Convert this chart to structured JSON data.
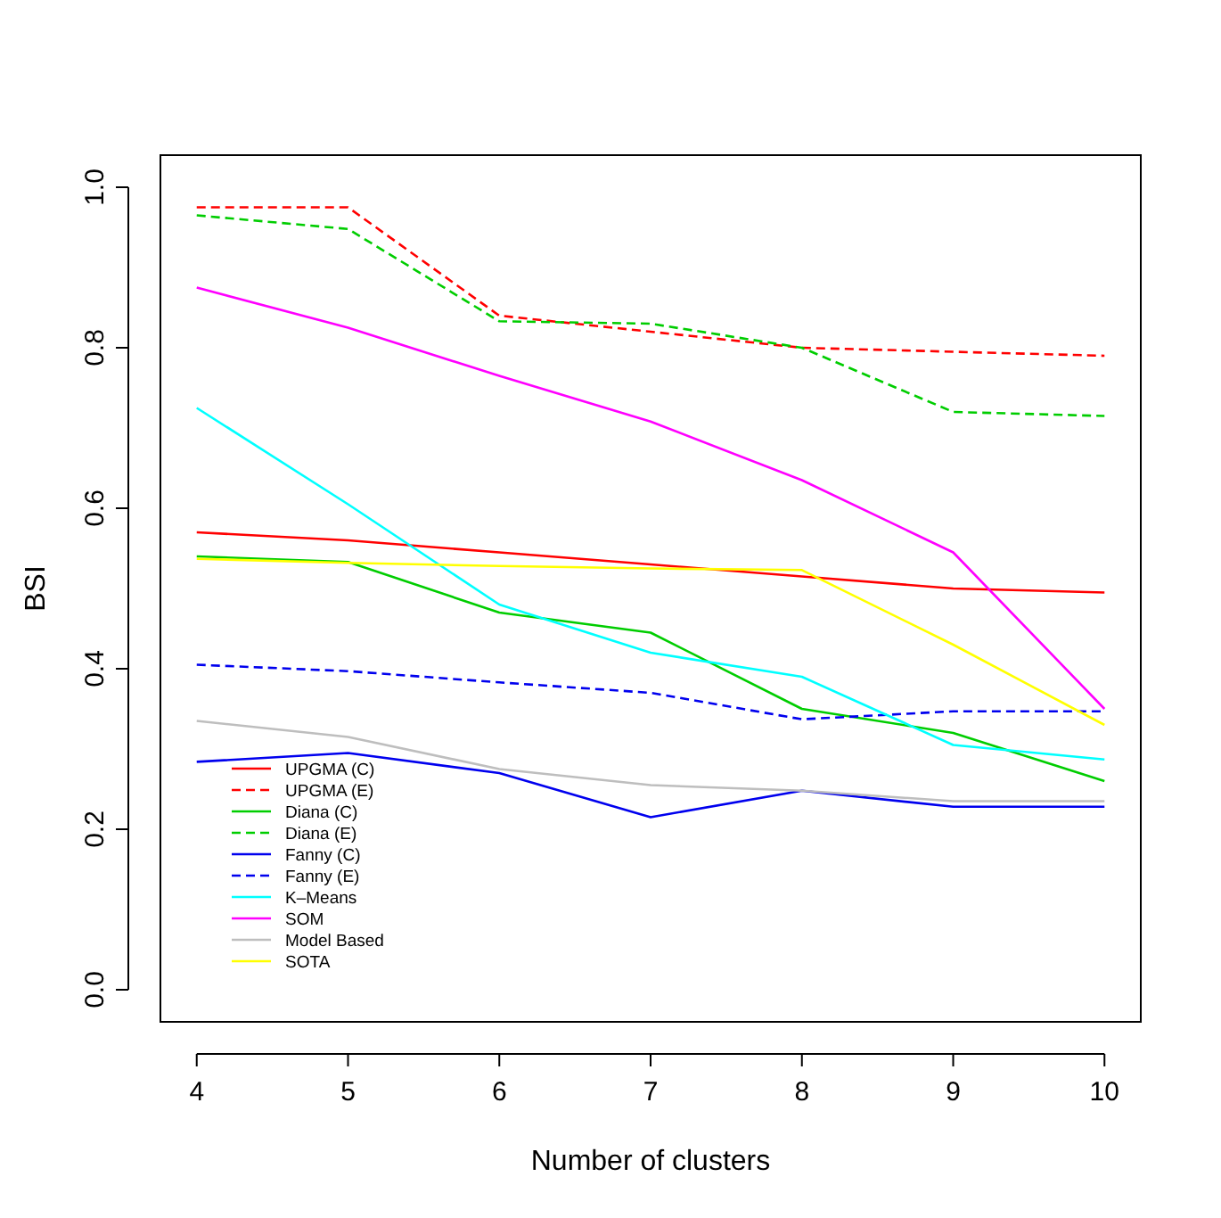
{
  "chart_data": {
    "type": "line",
    "xlabel": "Number of clusters",
    "ylabel": "BSI",
    "x": [
      4,
      5,
      6,
      7,
      8,
      9,
      10
    ],
    "xlim": [
      3.76,
      10.24
    ],
    "ylim": [
      -0.04,
      1.04
    ],
    "xticks": [
      4,
      5,
      6,
      7,
      8,
      9,
      10
    ],
    "yticks": [
      {
        "value": 0,
        "label": "0.0"
      },
      {
        "value": 0.2,
        "label": "0.2"
      },
      {
        "value": 0.4,
        "label": "0.4"
      },
      {
        "value": 0.6,
        "label": "0.6"
      },
      {
        "value": 0.8,
        "label": "0.8"
      },
      {
        "value": 1,
        "label": "1.0"
      }
    ],
    "grid": false,
    "legend": "bottom left",
    "series": [
      {
        "name": "UPGMA (C)",
        "color": "#ff0000",
        "line_style": "solid",
        "values": [
          0.57,
          0.56,
          0.545,
          0.53,
          0.515,
          0.5,
          0.495
        ]
      },
      {
        "name": "UPGMA (E)",
        "color": "#ff0000",
        "line_style": "dashed",
        "values": [
          0.975,
          0.975,
          0.84,
          0.82,
          0.8,
          0.795,
          0.79
        ]
      },
      {
        "name": "Diana (C)",
        "color": "#00cd00",
        "line_style": "solid",
        "values": [
          0.54,
          0.533,
          0.47,
          0.445,
          0.35,
          0.32,
          0.26
        ]
      },
      {
        "name": "Diana (E)",
        "color": "#00cd00",
        "line_style": "dashed",
        "values": [
          0.965,
          0.948,
          0.833,
          0.83,
          0.8,
          0.72,
          0.715
        ]
      },
      {
        "name": "Fanny (C)",
        "color": "#0000ee",
        "line_style": "solid",
        "values": [
          0.284,
          0.295,
          0.27,
          0.215,
          0.248,
          0.228,
          0.228
        ]
      },
      {
        "name": "Fanny (E)",
        "color": "#0000ee",
        "line_style": "dashed",
        "values": [
          0.405,
          0.397,
          0.383,
          0.37,
          0.337,
          0.347,
          0.347
        ]
      },
      {
        "name": "K–Means",
        "color": "#00ffff",
        "line_style": "solid",
        "values": [
          0.725,
          0.605,
          0.48,
          0.42,
          0.39,
          0.305,
          0.287
        ]
      },
      {
        "name": "SOM",
        "color": "#ff00ff",
        "line_style": "solid",
        "values": [
          0.875,
          0.825,
          0.765,
          0.708,
          0.635,
          0.545,
          0.35
        ]
      },
      {
        "name": "Model Based",
        "color": "#bebebe",
        "line_style": "solid",
        "values": [
          0.335,
          0.315,
          0.275,
          0.255,
          0.248,
          0.235,
          0.235
        ]
      },
      {
        "name": "SOTA",
        "color": "#ffff00",
        "line_style": "solid",
        "values": [
          0.537,
          0.532,
          0.528,
          0.525,
          0.523,
          0.43,
          0.33
        ]
      }
    ]
  }
}
